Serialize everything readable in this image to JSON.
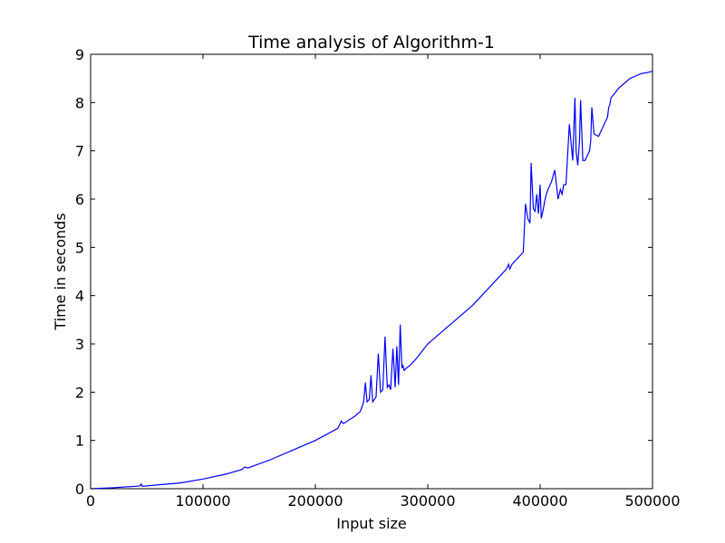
{
  "chart_data": {
    "type": "line",
    "title": "Time analysis of Algorithm-1",
    "xlabel": "Input size",
    "ylabel": "Time in seconds",
    "xlim": [
      0,
      500000
    ],
    "ylim": [
      0,
      9
    ],
    "xticks": [
      0,
      100000,
      200000,
      300000,
      400000,
      500000
    ],
    "yticks": [
      0,
      1,
      2,
      3,
      4,
      5,
      6,
      7,
      8,
      9
    ],
    "grid": false,
    "color": "#0000ff",
    "series": [
      {
        "x": [
          0,
          20000,
          40000,
          44000,
          45000,
          46000,
          60000,
          80000,
          100000,
          120000,
          135000,
          137000,
          140000,
          160000,
          180000,
          200000,
          220000,
          223000,
          225000,
          235000,
          240000,
          243000,
          244500,
          246000,
          248000,
          249500,
          251000,
          254000,
          256000,
          258000,
          260000,
          262000,
          264000,
          265500,
          267000,
          269000,
          271000,
          272500,
          274000,
          275500,
          277000,
          278000,
          279000,
          281000,
          284000,
          290000,
          300000,
          320000,
          340000,
          360000,
          370000,
          372000,
          373000,
          375000,
          385000,
          386000,
          387000,
          389000,
          391000,
          392000,
          394000,
          395500,
          397000,
          398500,
          400000,
          401000,
          402500,
          404000,
          405500,
          407000,
          410000,
          413000,
          416000,
          418000,
          419500,
          421000,
          423000,
          426000,
          429000,
          431000,
          432000,
          433500,
          435000,
          436000,
          438000,
          440000,
          442000,
          444000,
          445000,
          446000,
          448000,
          452000,
          456000,
          460000,
          461000,
          462000,
          463000,
          465000,
          470000,
          475000,
          480000,
          485000,
          490000,
          495000,
          500000
        ],
        "y": [
          0.0,
          0.02,
          0.05,
          0.06,
          0.1,
          0.05,
          0.08,
          0.12,
          0.2,
          0.3,
          0.4,
          0.45,
          0.43,
          0.6,
          0.8,
          1.0,
          1.25,
          1.4,
          1.35,
          1.5,
          1.6,
          1.8,
          2.2,
          1.8,
          1.85,
          2.35,
          1.8,
          1.9,
          2.8,
          2.0,
          2.05,
          3.15,
          2.1,
          2.15,
          2.05,
          2.9,
          2.1,
          2.95,
          2.15,
          3.4,
          2.5,
          2.55,
          2.45,
          2.5,
          2.55,
          2.7,
          3.0,
          3.4,
          3.8,
          4.3,
          4.55,
          4.65,
          4.55,
          4.65,
          4.9,
          5.4,
          5.9,
          5.6,
          5.5,
          6.75,
          5.8,
          5.75,
          6.1,
          5.7,
          6.3,
          5.6,
          5.75,
          5.95,
          6.1,
          6.2,
          6.35,
          6.6,
          6.0,
          6.2,
          6.1,
          6.3,
          6.3,
          7.55,
          6.8,
          8.1,
          7.0,
          6.7,
          7.2,
          8.05,
          6.8,
          6.8,
          6.9,
          7.0,
          7.2,
          7.9,
          7.35,
          7.3,
          7.5,
          7.7,
          7.9,
          7.95,
          8.1,
          8.15,
          8.3,
          8.4,
          8.5,
          8.55,
          8.6,
          8.62,
          8.65
        ]
      }
    ]
  }
}
